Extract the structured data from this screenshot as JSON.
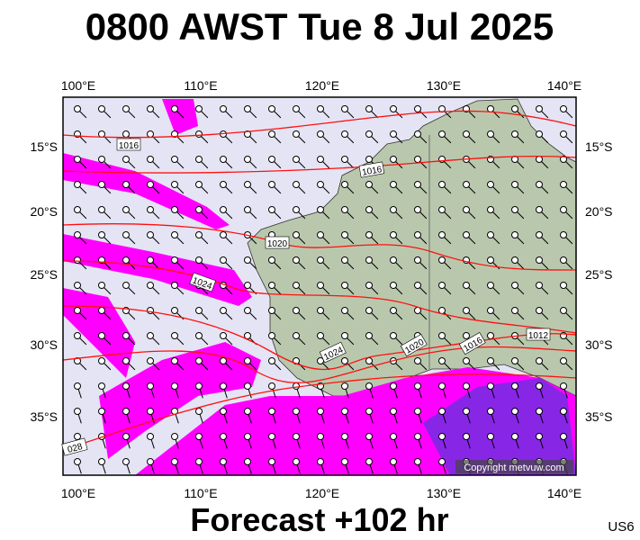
{
  "header": {
    "title": "0800 AWST Tue 8 Jul 2025"
  },
  "footer": {
    "forecast": "Forecast +102 hr",
    "region": "US6"
  },
  "map": {
    "longitude_labels": [
      "100°E",
      "110°E",
      "120°E",
      "130°E",
      "140°E"
    ],
    "latitude_labels": [
      "15°S",
      "20°S",
      "25°S",
      "30°S",
      "35°S"
    ],
    "isobar_labels": [
      "1016",
      "1016",
      "1020",
      "1024",
      "1024",
      "1020",
      "1016",
      "1012",
      "028"
    ],
    "copyright": "Copyright metvuw.com"
  }
}
